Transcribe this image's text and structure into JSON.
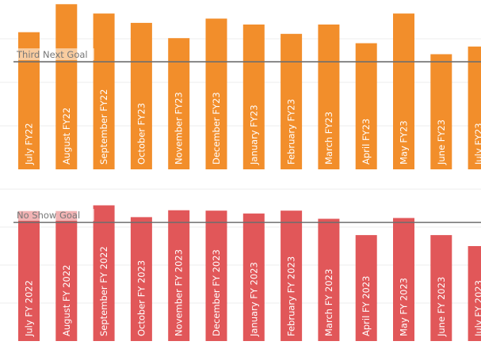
{
  "chart_data": [
    {
      "type": "bar",
      "title": "",
      "categories": [
        "July FY22",
        "August FY22",
        "September FY22",
        "October FY23",
        "November FY23",
        "December FY23",
        "January FY23",
        "February FY23",
        "March FY23",
        "April FY23",
        "May FY23",
        "June FY23",
        "July FY23"
      ],
      "values": [
        16.2,
        19.5,
        18.4,
        17.3,
        15.5,
        17.8,
        17.1,
        16.0,
        17.1,
        14.9,
        18.4,
        13.6,
        14.5
      ],
      "ylim": [
        0,
        20
      ],
      "goal": 12.7,
      "goal_label": "Third Next Goal",
      "bar_color": "#F28E2B",
      "grid": true
    },
    {
      "type": "bar",
      "title": "",
      "categories": [
        "July FY 2022",
        "August FY 2022",
        "September FY 2022",
        "October FY 2023",
        "November FY 2023",
        "December FY 2023",
        "January FY 2023",
        "February FY 2023",
        "March FY 2023",
        "April FY 2023",
        "May FY 2023",
        "June FY 2023",
        "July FY 2023"
      ],
      "values": [
        0.1595,
        0.1595,
        0.1665,
        0.152,
        0.1605,
        0.16,
        0.1565,
        0.16,
        0.15,
        0.13,
        0.151,
        0.13,
        0.1165
      ],
      "ylim": [
        0,
        0.2
      ],
      "goal": 0.1455,
      "goal_label": "No Show Goal",
      "bar_color": "#E15759",
      "grid": true
    }
  ]
}
